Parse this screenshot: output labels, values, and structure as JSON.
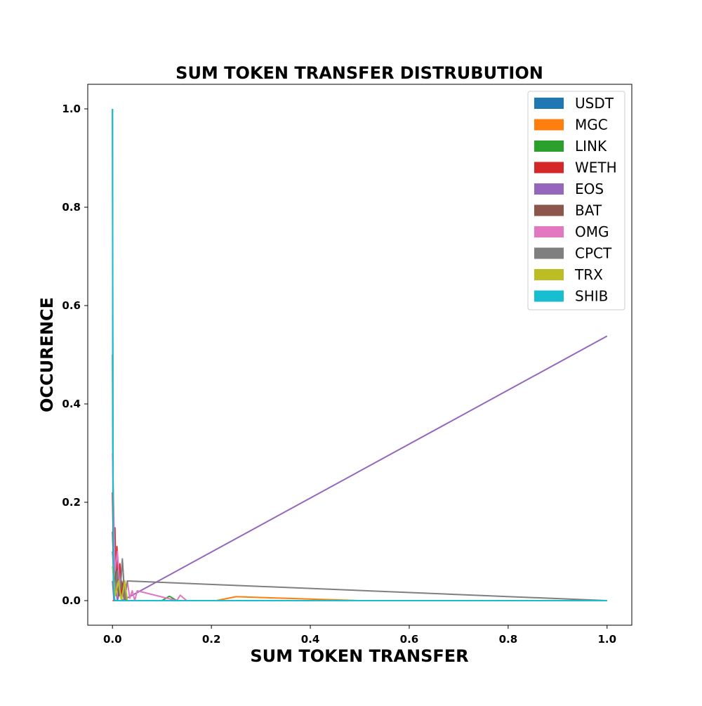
{
  "chart_data": {
    "type": "line",
    "title": "SUM TOKEN TRANSFER DISTRUBUTION",
    "xlabel": "SUM TOKEN TRANSFER",
    "ylabel": "OCCURENCE",
    "xlim": [
      -0.05,
      1.05
    ],
    "ylim": [
      -0.05,
      1.05
    ],
    "xticks": [
      0.0,
      0.2,
      0.4,
      0.6,
      0.8,
      1.0
    ],
    "xtick_labels": [
      "0.0",
      "0.2",
      "0.4",
      "0.6",
      "0.8",
      "1.0"
    ],
    "yticks": [
      0.0,
      0.2,
      0.4,
      0.6,
      0.8,
      1.0
    ],
    "ytick_labels": [
      "0.0",
      "0.2",
      "0.4",
      "0.6",
      "0.8",
      "1.0"
    ],
    "grid": false,
    "legend_position": "top-right",
    "series": [
      {
        "name": "USDT",
        "color": "#1f77b4",
        "x": [
          0,
          0.001,
          0.002,
          0.004,
          1.0
        ],
        "y": [
          1.0,
          0.12,
          0.02,
          0,
          0
        ]
      },
      {
        "name": "MGC",
        "color": "#ff7f0e",
        "x": [
          0,
          0.21,
          0.25,
          0.5,
          1.0
        ],
        "y": [
          0,
          0,
          0.008,
          0,
          0
        ]
      },
      {
        "name": "LINK",
        "color": "#2ca02c",
        "x": [
          0,
          0.002,
          0.004,
          0.1,
          0.115,
          0.13,
          1.0
        ],
        "y": [
          0.5,
          0.03,
          0,
          0,
          0.009,
          0,
          0
        ]
      },
      {
        "name": "WETH",
        "color": "#d62728",
        "x": [
          0,
          0.003,
          0.005,
          0.007,
          0.009,
          0.012,
          0.015,
          0.018,
          0.022,
          0.028,
          0.035,
          1.0
        ],
        "y": [
          0.22,
          0.05,
          0.148,
          0.03,
          0.11,
          0.02,
          0.075,
          0.01,
          0.04,
          0,
          0,
          0
        ]
      },
      {
        "name": "EOS",
        "color": "#9467bd",
        "x": [
          0,
          0.003,
          0.006,
          0.01,
          0.015,
          0.02,
          1.0
        ],
        "y": [
          0.04,
          0,
          0.03,
          0,
          0.02,
          0,
          0.538
        ]
      },
      {
        "name": "BAT",
        "color": "#8c564b",
        "x": [
          0,
          0.004,
          0.008,
          0.012,
          0.018,
          0.024,
          0.03,
          1.0
        ],
        "y": [
          0.14,
          0.02,
          0.07,
          0.01,
          0.04,
          0,
          0,
          0
        ]
      },
      {
        "name": "OMG",
        "color": "#e377c2",
        "x": [
          0,
          0.005,
          0.01,
          0.015,
          0.02,
          0.025,
          0.03,
          0.035,
          0.04,
          0.045,
          0.05,
          0.13,
          0.137,
          0.15,
          1.0
        ],
        "y": [
          0.3,
          0.06,
          0.1,
          0.02,
          0.08,
          0.01,
          0.04,
          0.005,
          0.02,
          0,
          0.02,
          0,
          0.011,
          0,
          0
        ]
      },
      {
        "name": "CPCT",
        "color": "#7f7f7f",
        "x": [
          0,
          0.005,
          0.01,
          0.015,
          0.02,
          0.025,
          0.03,
          1.0
        ],
        "y": [
          0.1,
          0.02,
          0.06,
          0.01,
          0.085,
          0,
          0.04,
          0
        ]
      },
      {
        "name": "TRX",
        "color": "#bcbd22",
        "x": [
          0,
          0.006,
          0.012,
          0.018,
          0.025,
          0.03,
          1.0
        ],
        "y": [
          0.07,
          0.01,
          0.04,
          0,
          0.04,
          0,
          0
        ]
      },
      {
        "name": "SHIB",
        "color": "#17becf",
        "x": [
          0,
          0.001,
          0.002,
          0.003,
          0.005,
          1.0
        ],
        "y": [
          1.0,
          0.33,
          0.05,
          0.01,
          0,
          0
        ]
      }
    ]
  }
}
